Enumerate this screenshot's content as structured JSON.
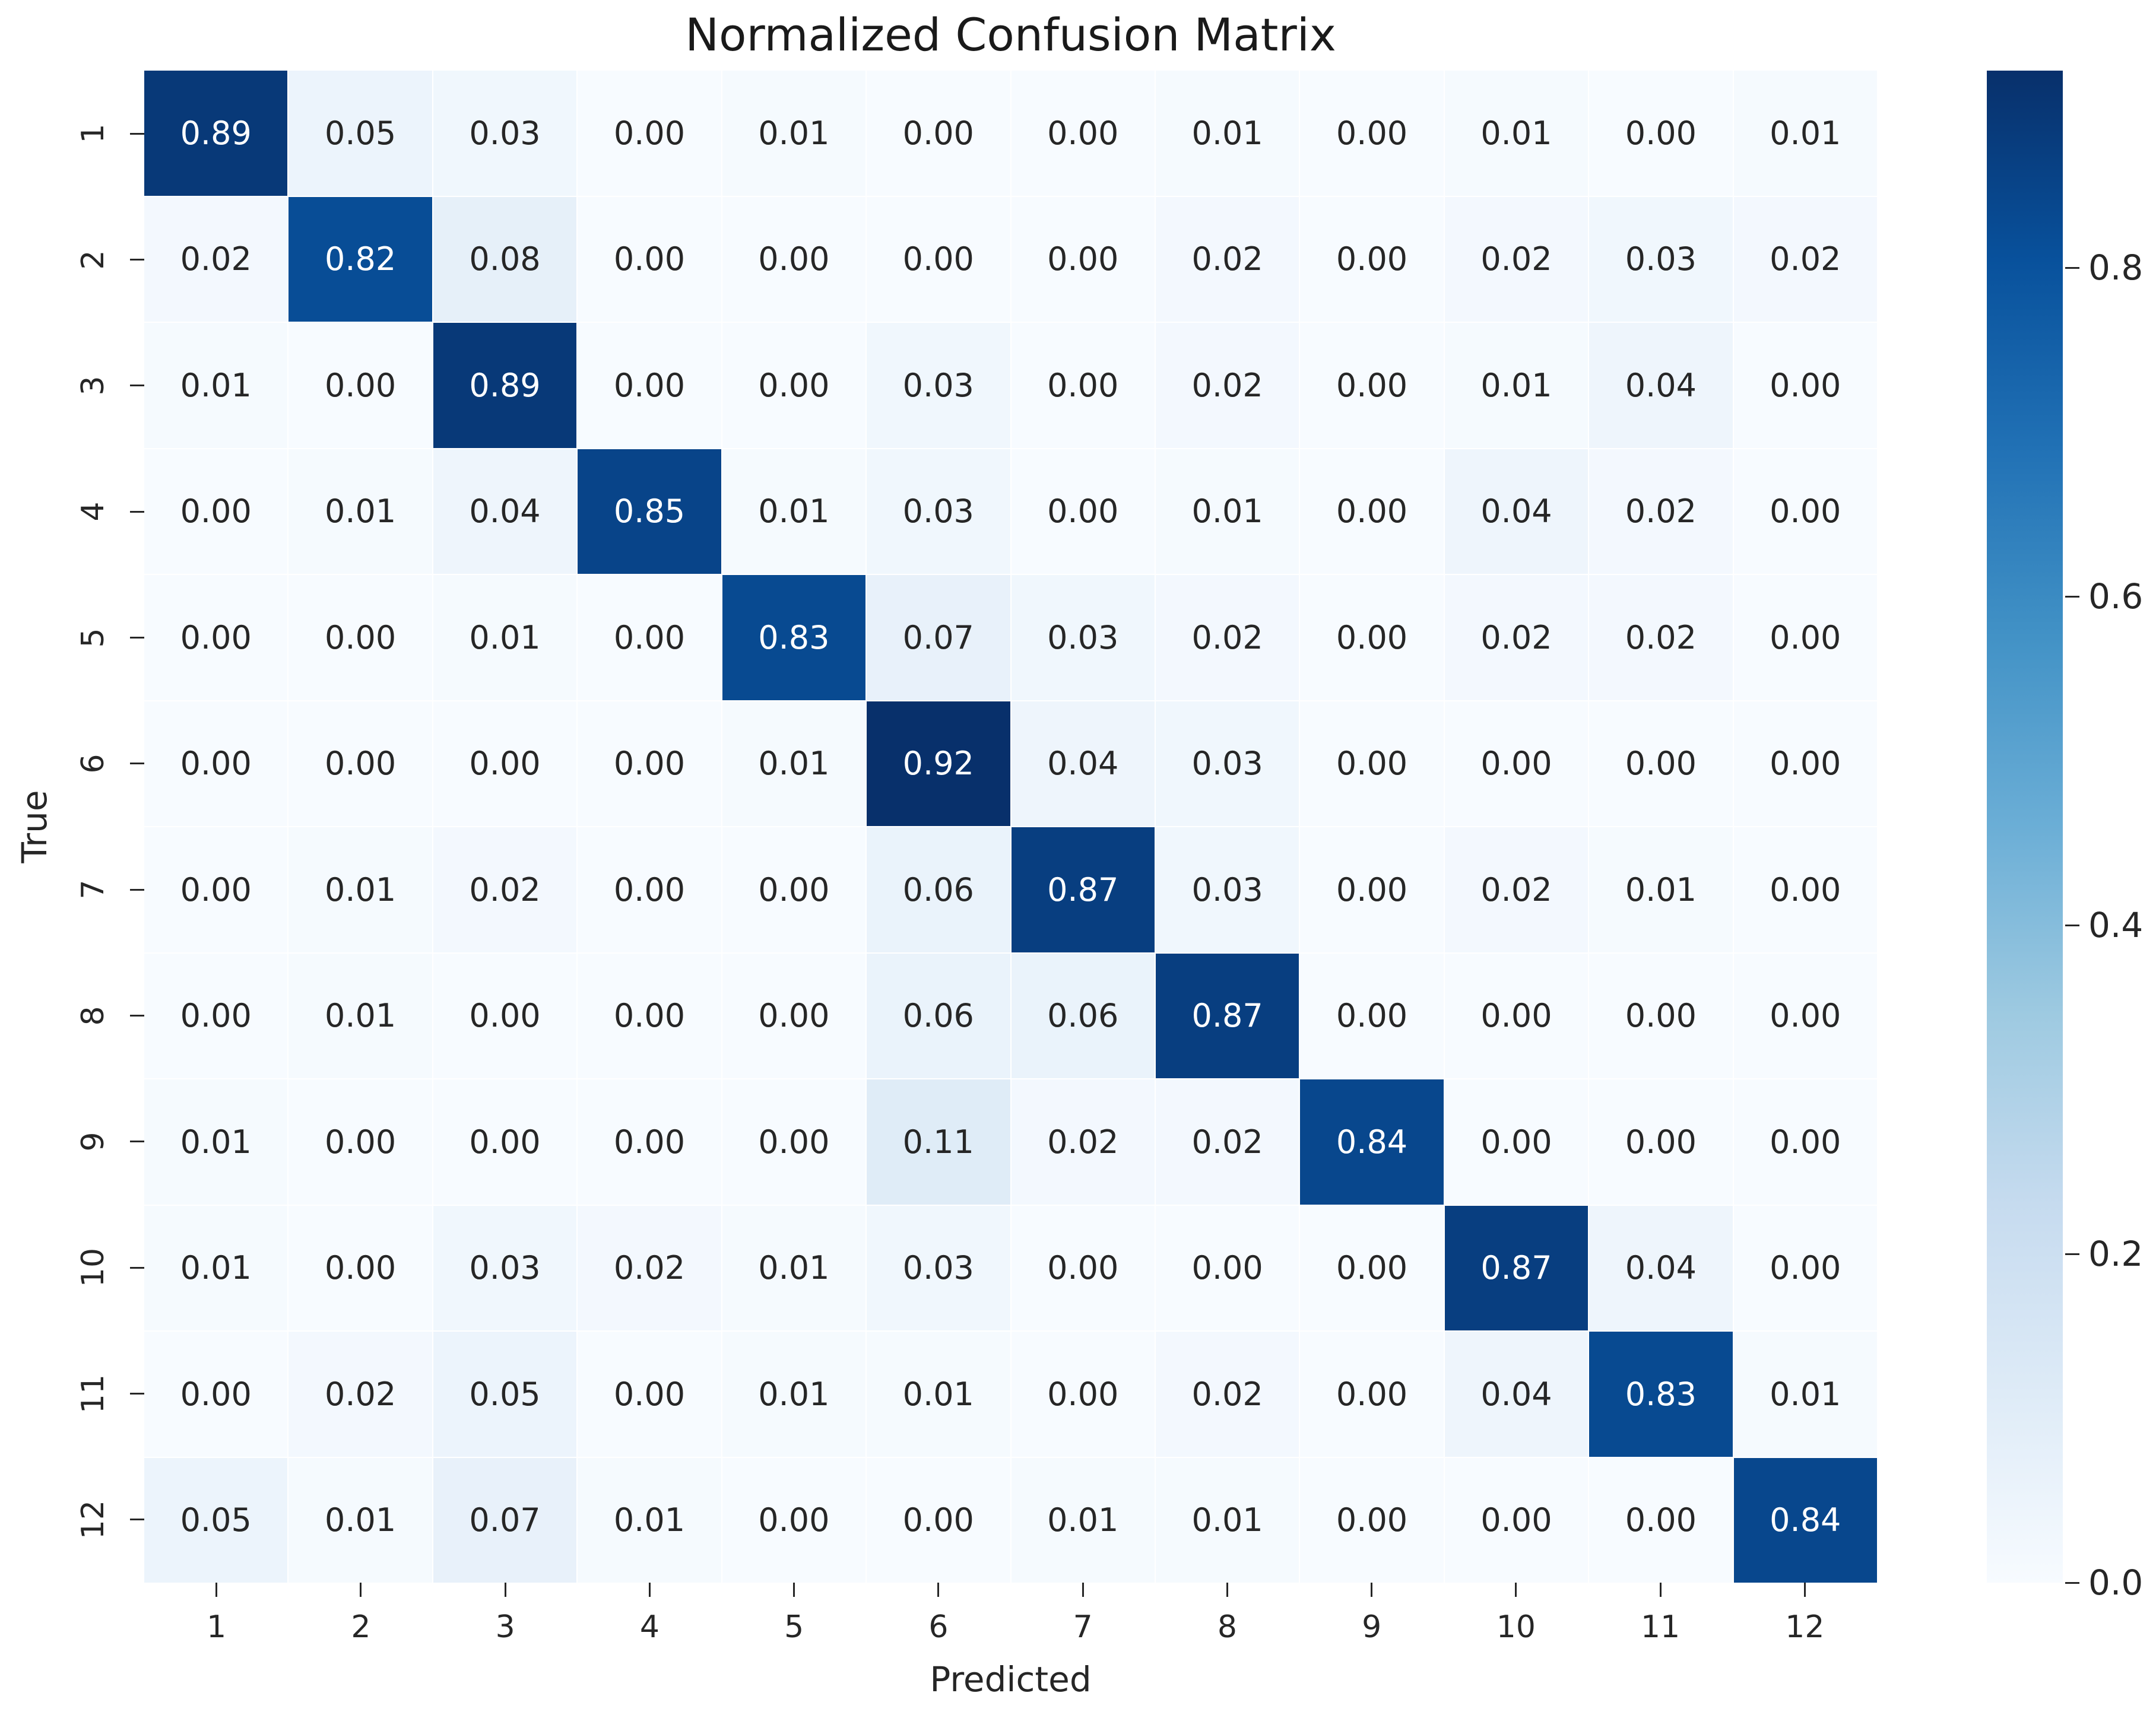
{
  "figure": {
    "title": "Normalized Confusion Matrix",
    "xlabel": "Predicted",
    "ylabel": "True"
  },
  "chart_data": {
    "type": "heatmap",
    "title": "Normalized Confusion Matrix",
    "xlabel": "Predicted",
    "ylabel": "True",
    "x_tick_labels": [
      "1",
      "2",
      "3",
      "4",
      "5",
      "6",
      "7",
      "8",
      "9",
      "10",
      "11",
      "12"
    ],
    "y_tick_labels": [
      "1",
      "2",
      "3",
      "4",
      "5",
      "6",
      "7",
      "8",
      "9",
      "10",
      "11",
      "12"
    ],
    "matrix": [
      [
        0.89,
        0.05,
        0.03,
        0.0,
        0.01,
        0.0,
        0.0,
        0.01,
        0.0,
        0.01,
        0.0,
        0.01
      ],
      [
        0.02,
        0.82,
        0.08,
        0.0,
        0.0,
        0.0,
        0.0,
        0.02,
        0.0,
        0.02,
        0.03,
        0.02
      ],
      [
        0.01,
        0.0,
        0.89,
        0.0,
        0.0,
        0.03,
        0.0,
        0.02,
        0.0,
        0.01,
        0.04,
        0.0
      ],
      [
        0.0,
        0.01,
        0.04,
        0.85,
        0.01,
        0.03,
        0.0,
        0.01,
        0.0,
        0.04,
        0.02,
        0.0
      ],
      [
        0.0,
        0.0,
        0.01,
        0.0,
        0.83,
        0.07,
        0.03,
        0.02,
        0.0,
        0.02,
        0.02,
        0.0
      ],
      [
        0.0,
        0.0,
        0.0,
        0.0,
        0.01,
        0.92,
        0.04,
        0.03,
        0.0,
        0.0,
        0.0,
        0.0
      ],
      [
        0.0,
        0.01,
        0.02,
        0.0,
        0.0,
        0.06,
        0.87,
        0.03,
        0.0,
        0.02,
        0.01,
        0.0
      ],
      [
        0.0,
        0.01,
        0.0,
        0.0,
        0.0,
        0.06,
        0.06,
        0.87,
        0.0,
        0.0,
        0.0,
        0.0
      ],
      [
        0.01,
        0.0,
        0.0,
        0.0,
        0.0,
        0.11,
        0.02,
        0.02,
        0.84,
        0.0,
        0.0,
        0.0
      ],
      [
        0.01,
        0.0,
        0.03,
        0.02,
        0.01,
        0.03,
        0.0,
        0.0,
        0.0,
        0.87,
        0.04,
        0.0
      ],
      [
        0.0,
        0.02,
        0.05,
        0.0,
        0.01,
        0.01,
        0.0,
        0.02,
        0.0,
        0.04,
        0.83,
        0.01
      ],
      [
        0.05,
        0.01,
        0.07,
        0.01,
        0.0,
        0.0,
        0.01,
        0.01,
        0.0,
        0.0,
        0.0,
        0.84
      ]
    ],
    "annotation_format": "0.00",
    "vmin": 0.0,
    "vmax": 0.92,
    "colormap": "Blues",
    "colorbar_position": "right",
    "colorbar_ticks": [
      0.8,
      0.6,
      0.4,
      0.2,
      0.0
    ],
    "grid": false,
    "colors": {
      "colormap_low": "#f7fbff",
      "colormap_high": "#08306b",
      "annotation_dark": "#262626",
      "annotation_light": "#ffffff",
      "axis_text": "#262626"
    }
  }
}
